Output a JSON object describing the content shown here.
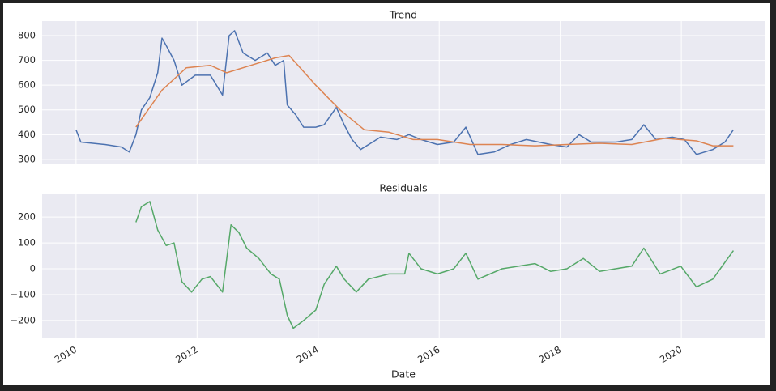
{
  "chart_data": [
    {
      "type": "line",
      "title": "Trend",
      "xlim": [
        2009.44,
        2021.39
      ],
      "ylim": [
        280,
        859
      ],
      "yticks": [
        300,
        400,
        500,
        600,
        700,
        800
      ],
      "grid": true,
      "series": [
        {
          "color": "#4c72b0",
          "x": [
            2010.0,
            2010.08,
            2010.48,
            2010.75,
            2010.88,
            2010.99,
            2011.08,
            2011.22,
            2011.35,
            2011.42,
            2011.49,
            2011.62,
            2011.75,
            2011.97,
            2012.22,
            2012.42,
            2012.53,
            2012.62,
            2012.76,
            2012.96,
            2013.16,
            2013.29,
            2013.43,
            2013.49,
            2013.63,
            2013.76,
            2013.96,
            2014.1,
            2014.3,
            2014.43,
            2014.56,
            2014.7,
            2014.9,
            2015.03,
            2015.3,
            2015.5,
            2015.7,
            2015.97,
            2016.24,
            2016.44,
            2016.64,
            2016.91,
            2017.18,
            2017.44,
            2017.84,
            2018.11,
            2018.31,
            2018.51,
            2018.92,
            2019.18,
            2019.38,
            2019.58,
            2019.85,
            2020.05,
            2020.25,
            2020.52,
            2020.72,
            2020.86
          ],
          "values": [
            420,
            370,
            360,
            350,
            330,
            400,
            500,
            550,
            650,
            790,
            760,
            700,
            600,
            640,
            640,
            560,
            800,
            820,
            730,
            700,
            730,
            680,
            700,
            520,
            480,
            430,
            430,
            440,
            510,
            440,
            380,
            340,
            370,
            390,
            380,
            400,
            380,
            360,
            370,
            430,
            320,
            330,
            360,
            380,
            360,
            350,
            400,
            370,
            370,
            380,
            440,
            380,
            390,
            380,
            320,
            340,
            370,
            420
          ]
        },
        {
          "color": "#dd8452",
          "x": [
            2010.99,
            2011.42,
            2011.82,
            2012.22,
            2012.49,
            2012.89,
            2013.29,
            2013.52,
            2013.96,
            2014.36,
            2014.76,
            2015.17,
            2015.57,
            2015.97,
            2016.51,
            2017.04,
            2017.58,
            2018.11,
            2018.65,
            2019.18,
            2019.72,
            2020.25,
            2020.52,
            2020.86
          ],
          "values": [
            430,
            580,
            670,
            680,
            650,
            680,
            710,
            720,
            600,
            500,
            420,
            410,
            380,
            380,
            360,
            360,
            355,
            360,
            365,
            360,
            385,
            375,
            355,
            355
          ]
        }
      ]
    },
    {
      "type": "line",
      "title": "Residuals",
      "xlabel": "Date",
      "xlim": [
        2009.44,
        2021.39
      ],
      "xticks": [
        2010,
        2012,
        2014,
        2016,
        2018,
        2020
      ],
      "ylim": [
        -266,
        288
      ],
      "yticks": [
        {
          "value": -200,
          "label": "−200"
        },
        {
          "value": -100,
          "label": "−100"
        },
        0,
        100,
        200
      ],
      "grid": true,
      "series": [
        {
          "color": "#55a868",
          "x": [
            2010.99,
            2011.08,
            2011.22,
            2011.35,
            2011.49,
            2011.62,
            2011.75,
            2011.91,
            2012.08,
            2012.22,
            2012.42,
            2012.56,
            2012.69,
            2012.82,
            2013.02,
            2013.22,
            2013.36,
            2013.49,
            2013.59,
            2013.76,
            2013.96,
            2014.1,
            2014.3,
            2014.43,
            2014.63,
            2014.83,
            2015.17,
            2015.43,
            2015.5,
            2015.7,
            2015.97,
            2016.24,
            2016.44,
            2016.64,
            2017.04,
            2017.58,
            2017.84,
            2018.11,
            2018.38,
            2018.65,
            2019.18,
            2019.38,
            2019.65,
            2019.99,
            2020.25,
            2020.52,
            2020.86
          ],
          "values": [
            180,
            240,
            260,
            150,
            90,
            100,
            -50,
            -90,
            -40,
            -30,
            -90,
            170,
            140,
            80,
            40,
            -20,
            -40,
            -180,
            -230,
            -200,
            -160,
            -60,
            10,
            -40,
            -90,
            -40,
            -20,
            -20,
            60,
            0,
            -20,
            0,
            60,
            -40,
            0,
            20,
            -10,
            0,
            40,
            -10,
            10,
            80,
            -20,
            10,
            -70,
            -40,
            70
          ]
        }
      ]
    }
  ]
}
